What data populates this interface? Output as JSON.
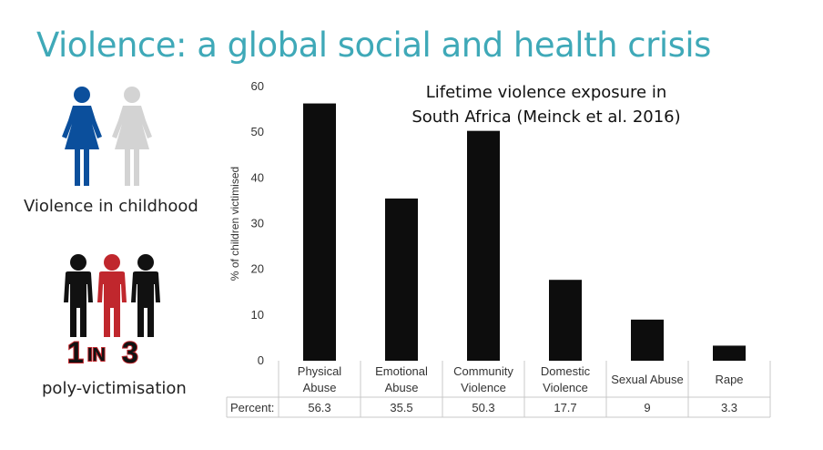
{
  "slide": {
    "title": "Violence: a global social and health crisis",
    "caption_childhood": "Violence in childhood",
    "caption_poly": "poly-victimisation",
    "stat_num1": "1",
    "stat_in": "IN",
    "stat_num2": "3"
  },
  "icons": {
    "women": "female-figure-icon",
    "people": "people-group-icon"
  },
  "colors": {
    "title": "#3fa9b8",
    "bar": "#0d0d0d",
    "woman_blue": "#0b4f9c",
    "woman_gray": "#d3d3d3",
    "person_red": "#c0272d"
  },
  "chart_data": {
    "type": "bar",
    "title": "Lifetime violence exposure in South Africa (Meinck et al. 2016)",
    "ylabel": "% of children victimised",
    "ylim": [
      0,
      60
    ],
    "yticks": [
      0,
      10,
      20,
      30,
      40,
      50,
      60
    ],
    "categories": [
      [
        "Physical",
        "Abuse"
      ],
      [
        "Emotional",
        "Abuse"
      ],
      [
        "Community",
        "Violence"
      ],
      [
        "Domestic",
        "Violence"
      ],
      [
        "Sexual Abuse"
      ],
      [
        "Rape"
      ]
    ],
    "values": [
      56.3,
      35.5,
      50.3,
      17.7,
      9,
      3.3
    ],
    "table_row_label": "Percent:",
    "table_values": [
      "56.3",
      "35.5",
      "50.3",
      "17.7",
      "9",
      "3.3"
    ]
  }
}
